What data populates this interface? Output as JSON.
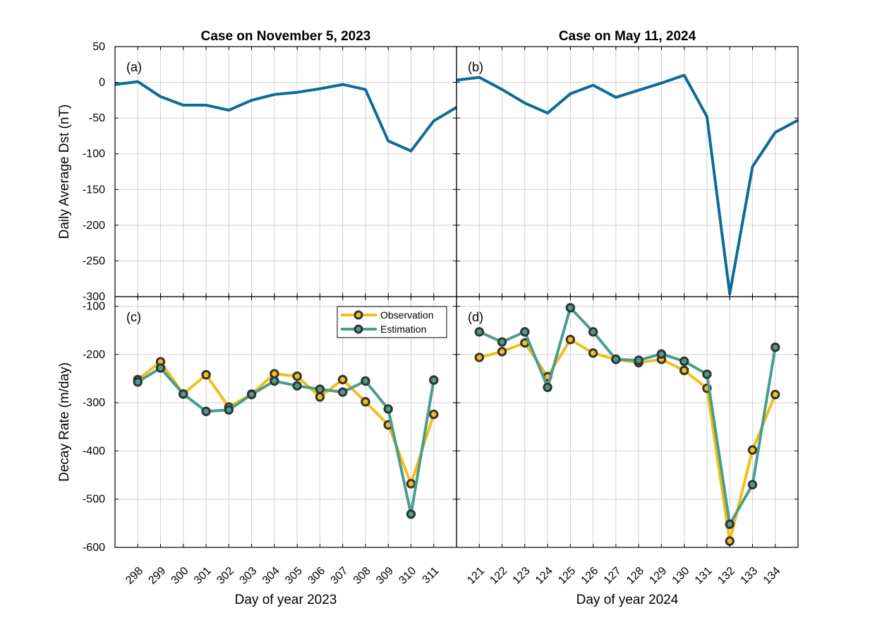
{
  "colors": {
    "dst": "#0e6a9a",
    "observation": "#f2bf1a",
    "estimation": "#4a9d8e",
    "marker_edge": "#333333",
    "grid": "#d0d0d0"
  },
  "chart_data": [
    {
      "id": "a",
      "panel_label": "(a)",
      "type": "line",
      "title": "Case on November 5, 2023",
      "ylabel": "Daily Average Dst (nT)",
      "xlabel": "",
      "xlim": [
        297,
        312
      ],
      "ylim": [
        -300,
        50
      ],
      "yticks": [
        50,
        0,
        -50,
        -100,
        -150,
        -200,
        -250,
        -300
      ],
      "grid": true,
      "series": [
        {
          "x": [
            297,
            298,
            299,
            300,
            301,
            302,
            303,
            304,
            305,
            306,
            307,
            308,
            309,
            310,
            311,
            312
          ],
          "values": [
            -3,
            1,
            -20,
            -32,
            -32,
            -39,
            -25,
            -17,
            -14,
            -9,
            -3,
            -10,
            -82,
            -96,
            -54,
            -35
          ]
        }
      ]
    },
    {
      "id": "b",
      "panel_label": "(b)",
      "type": "line",
      "title": "Case on May 11, 2024",
      "ylabel": "",
      "xlabel": "",
      "xlim": [
        120,
        135
      ],
      "ylim": [
        -300,
        50
      ],
      "grid": true,
      "series": [
        {
          "x": [
            120,
            121,
            122,
            123,
            124,
            125,
            126,
            127,
            128,
            129,
            130,
            131,
            132,
            133,
            134,
            135
          ],
          "values": [
            3,
            7,
            -10,
            -29,
            -43,
            -16,
            -4,
            -21,
            -11,
            -1,
            10,
            -48,
            -296,
            -118,
            -70,
            -53
          ]
        }
      ]
    },
    {
      "id": "c",
      "panel_label": "(c)",
      "type": "line",
      "title": "",
      "ylabel": "Decay Rate (m/day)",
      "xlabel": "Day of year 2023",
      "xlim": [
        297,
        312
      ],
      "ylim": [
        -600,
        -80
      ],
      "yticks": [
        -100,
        -200,
        -300,
        -400,
        -500,
        -600
      ],
      "categories": [
        "298",
        "299",
        "300",
        "301",
        "302",
        "303",
        "304",
        "305",
        "306",
        "307",
        "308",
        "309",
        "310",
        "311"
      ],
      "grid": true,
      "legend": "top-right",
      "series": [
        {
          "name": "Observation",
          "x": [
            298,
            299,
            300,
            301,
            302,
            303,
            304,
            305,
            306,
            307,
            308,
            309,
            310,
            311
          ],
          "values": [
            -252,
            -215,
            -282,
            -242,
            -309,
            -282,
            -240,
            -245,
            -288,
            -252,
            -298,
            -346,
            -468,
            -324
          ]
        },
        {
          "name": "Estimation",
          "x": [
            298,
            299,
            300,
            301,
            302,
            303,
            304,
            305,
            306,
            307,
            308,
            309,
            310,
            311
          ],
          "values": [
            -257,
            -228,
            -282,
            -318,
            -315,
            -283,
            -255,
            -265,
            -272,
            -278,
            -255,
            -313,
            -531,
            -253
          ]
        }
      ]
    },
    {
      "id": "d",
      "panel_label": "(d)",
      "type": "line",
      "title": "",
      "ylabel": "",
      "xlabel": "Day of year 2024",
      "xlim": [
        120,
        135
      ],
      "ylim": [
        -600,
        -80
      ],
      "categories": [
        "121",
        "122",
        "123",
        "124",
        "125",
        "126",
        "127",
        "128",
        "129",
        "130",
        "131",
        "132",
        "133",
        "134"
      ],
      "grid": true,
      "series": [
        {
          "name": "Observation",
          "x": [
            121,
            122,
            123,
            124,
            125,
            126,
            127,
            128,
            129,
            130,
            131,
            132,
            133,
            134
          ],
          "values": [
            -206,
            -194,
            -176,
            -246,
            -169,
            -197,
            -210,
            -217,
            -210,
            -233,
            -270,
            -587,
            -398,
            -283
          ]
        },
        {
          "name": "Estimation",
          "x": [
            121,
            122,
            123,
            124,
            125,
            126,
            127,
            128,
            129,
            130,
            131,
            132,
            133,
            134
          ],
          "values": [
            -153,
            -174,
            -153,
            -268,
            -103,
            -153,
            -210,
            -212,
            -199,
            -214,
            -241,
            -552,
            -470,
            -185
          ]
        }
      ]
    }
  ]
}
